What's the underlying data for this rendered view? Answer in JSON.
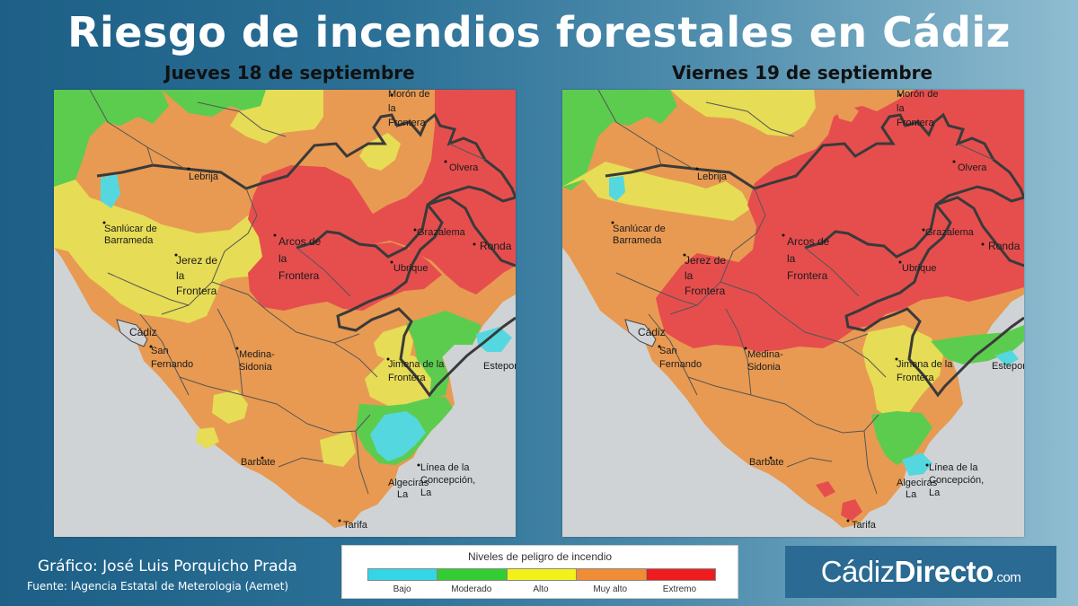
{
  "title": "Riesgo de incendios forestales en Cádiz",
  "maps": [
    {
      "day": "Jueves 18 de septiembre",
      "towns": {
        "moron": [
          "Morón de",
          "la",
          "Frontera"
        ],
        "lebrija": "Lebrija",
        "olvera": "Olvera",
        "sanlucar": [
          "Sanlúcar de",
          "Barrameda"
        ],
        "arcos": [
          "Arcos de",
          "la",
          "Frontera"
        ],
        "grazalema": "Grazalema",
        "ronda": "Ronda",
        "jerez": [
          "Jerez de",
          "la",
          "Frontera"
        ],
        "ubrique": "Ubrique",
        "cadiz": "Cádiz",
        "sanfernando": [
          "San",
          "Fernando"
        ],
        "medina": [
          "Medina-",
          "Sidonia"
        ],
        "jimena": [
          "Jimena de la",
          "Frontera"
        ],
        "estepona": "Estepon",
        "barbate": "Barbate",
        "linea": [
          "Línea de la",
          "Concepción,",
          "La"
        ],
        "algeciras": [
          "Algeciras",
          "La"
        ],
        "tarifa": "Tarifa"
      }
    },
    {
      "day": "Viernes 19 de septiembre",
      "towns": {
        "moron": [
          "Morón de",
          "la",
          "Frontera"
        ],
        "lebrija": "Lebrija",
        "olvera": "Olvera",
        "sanlucar": [
          "Sanlúcar de",
          "Barrameda"
        ],
        "arcos": [
          "Arcos de",
          "la",
          "Frontera"
        ],
        "grazalema": "Grazalema",
        "ronda": "Ronda",
        "jerez": [
          "Jerez de",
          "la",
          "Frontera"
        ],
        "ubrique": "Ubrique",
        "cadiz": "Cádiz",
        "sanfernando": [
          "San",
          "Fernando"
        ],
        "medina": [
          "Medina-",
          "Sidonia"
        ],
        "jimena": [
          "Jimena de la",
          "Frontera"
        ],
        "estepona": "Estepon",
        "barbate": "Barbate",
        "linea": [
          "Línea de la",
          "Concepción,",
          "La"
        ],
        "algeciras": [
          "Algeciras",
          "La"
        ],
        "tarifa": "Tarifa"
      }
    }
  ],
  "legend": {
    "title": "Niveles de peligro de incendio",
    "levels": [
      {
        "label": "Bajo",
        "color": "#33d6e6"
      },
      {
        "label": "Moderado",
        "color": "#33cc33"
      },
      {
        "label": "Alto",
        "color": "#f2f21a"
      },
      {
        "label": "Muy alto",
        "color": "#f08c33"
      },
      {
        "label": "Extremo",
        "color": "#ee1c1c"
      }
    ]
  },
  "credits": {
    "author": "Gráfico: José Luis Porquicho Prada",
    "source": "Fuente:  lAgencia Estatal de Meterologia (Aemet)"
  },
  "logo": {
    "part1": "Cádiz",
    "part2": "Directo",
    "part3": ".com"
  },
  "colors": {
    "sea": "#cfd3d5",
    "low": "#55d7df",
    "moderate": "#5ccc4e",
    "high": "#e6dc55",
    "very_high": "#e89a52",
    "extreme": "#e64e4e",
    "brand": "#2a6a93"
  }
}
